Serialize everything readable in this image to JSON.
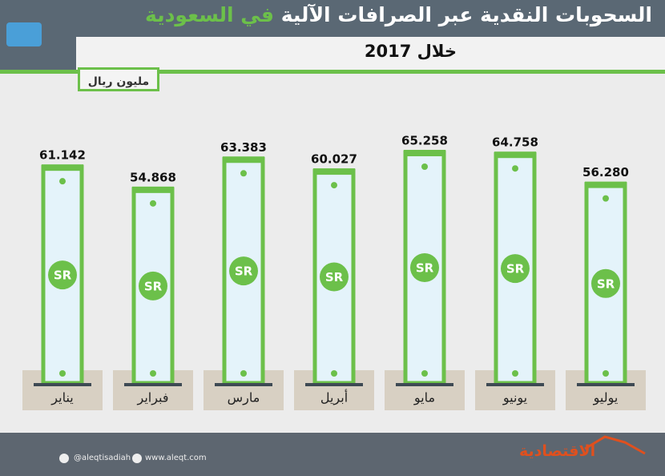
{
  "chart_data": {
    "type": "bar",
    "title": "السحوبات النقدية عبر الصرافات الآلية",
    "title_highlight": "في السعودية",
    "subtitle": "خلال 2017",
    "unit": "مليون ريال",
    "categories": [
      "يناير",
      "فبراير",
      "مارس",
      "أبريل",
      "مايو",
      "يونيو",
      "يوليو"
    ],
    "values": [
      61.142,
      54.868,
      63.383,
      60.027,
      65.258,
      64.758,
      56.28
    ],
    "value_labels": [
      "61.142",
      "54.868",
      "63.383",
      "60.027",
      "65.258",
      "64.758",
      "56.280"
    ],
    "bar_text": "SR",
    "color": "#6cc04a"
  },
  "footer": {
    "twitter": "@aleqtisadiah",
    "website": "www.aleqt.com",
    "logo": "الاقتصادية"
  }
}
